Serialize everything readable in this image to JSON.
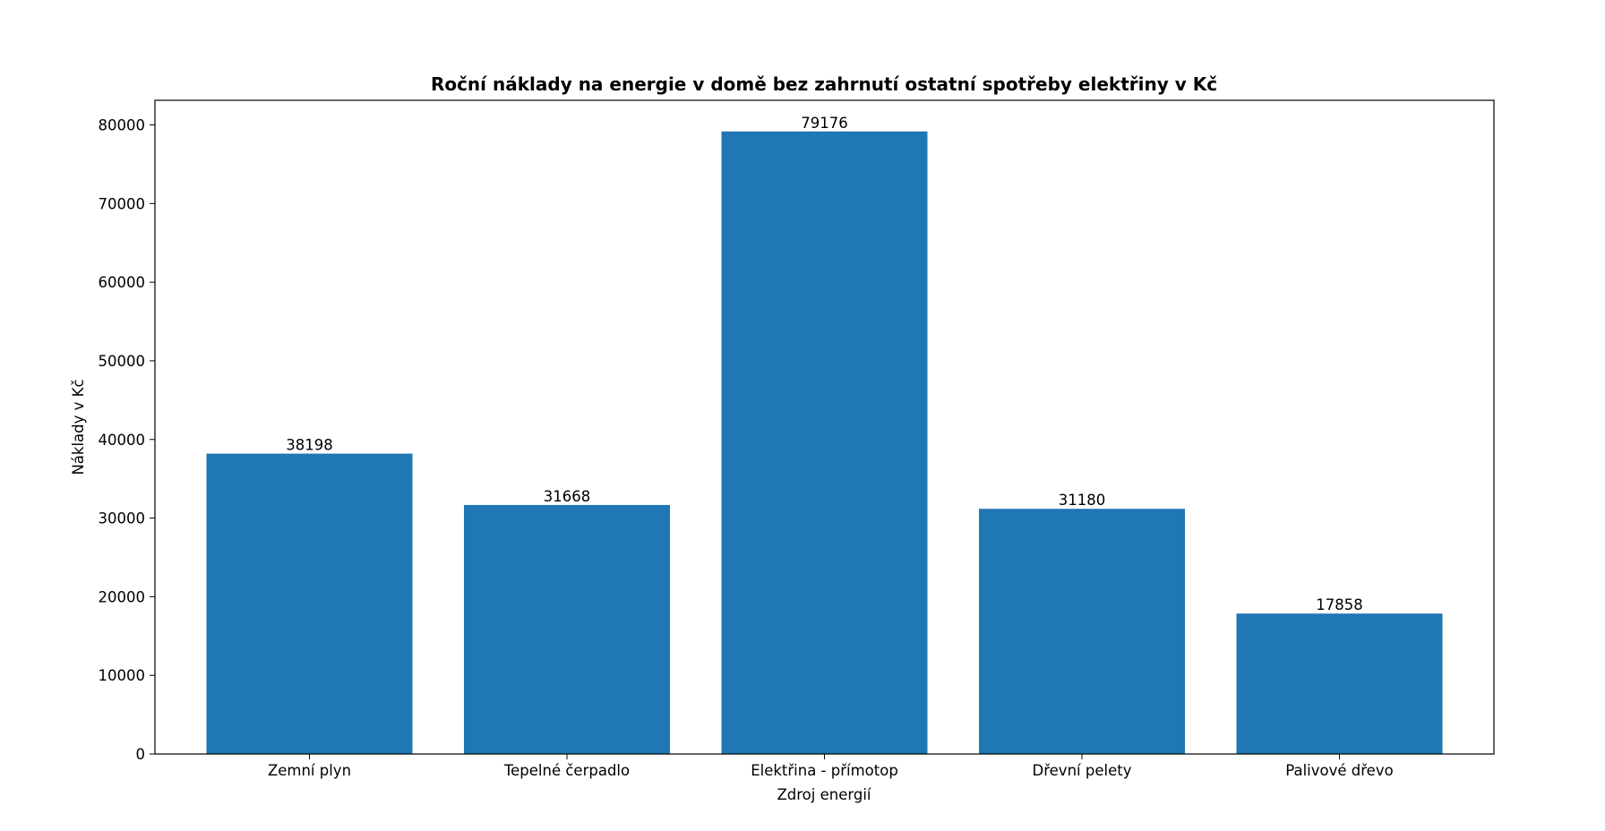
{
  "chart_data": {
    "type": "bar",
    "title": "Roční náklady na energie v domě bez zahrnutí ostatní spotřeby elektřiny v Kč",
    "xlabel": "Zdroj energií",
    "ylabel": "Náklady v Kč",
    "categories": [
      "Zemní plyn",
      "Tepelné čerpadlo",
      "Elektřina - přímotop",
      "Dřevní pelety",
      "Palivové dřevo"
    ],
    "values": [
      38198,
      31668,
      79176,
      31180,
      17858
    ],
    "data_labels": [
      "38198",
      "31668",
      "79176",
      "31180",
      "17858"
    ],
    "yticks": [
      0,
      10000,
      20000,
      30000,
      40000,
      50000,
      60000,
      70000,
      80000
    ],
    "ytick_labels": [
      "0",
      "10000",
      "20000",
      "30000",
      "40000",
      "50000",
      "60000",
      "70000",
      "80000"
    ],
    "ylim": [
      0,
      83134.8
    ],
    "grid": false,
    "legend": "none",
    "bar_color": "#1f77b4"
  }
}
